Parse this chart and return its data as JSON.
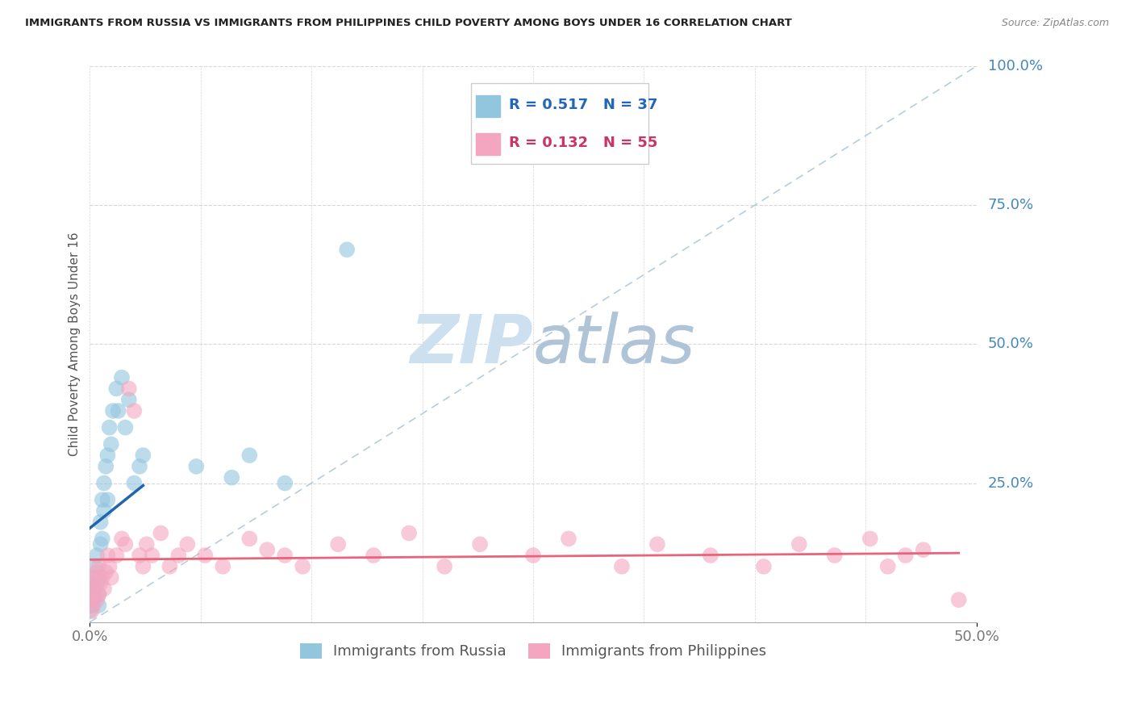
{
  "title": "IMMIGRANTS FROM RUSSIA VS IMMIGRANTS FROM PHILIPPINES CHILD POVERTY AMONG BOYS UNDER 16 CORRELATION CHART",
  "source": "Source: ZipAtlas.com",
  "yaxis_label": "Child Poverty Among Boys Under 16",
  "legend_russia": "Immigrants from Russia",
  "legend_philippines": "Immigrants from Philippines",
  "R_russia": 0.517,
  "N_russia": 37,
  "R_philippines": 0.132,
  "N_philippines": 55,
  "color_russia": "#92c5de",
  "color_philippines": "#f4a6c0",
  "color_russia_line": "#2166ac",
  "color_philippines_line": "#e8647a",
  "watermark_zip_color": "#c8dff0",
  "watermark_atlas_color": "#b8c8e0",
  "russia_x": [
    0.0,
    0.001,
    0.001,
    0.002,
    0.002,
    0.003,
    0.003,
    0.004,
    0.004,
    0.005,
    0.005,
    0.005,
    0.006,
    0.006,
    0.007,
    0.007,
    0.008,
    0.008,
    0.009,
    0.01,
    0.01,
    0.011,
    0.012,
    0.013,
    0.015,
    0.016,
    0.018,
    0.02,
    0.022,
    0.025,
    0.028,
    0.03,
    0.06,
    0.08,
    0.09,
    0.11,
    0.145
  ],
  "russia_y": [
    0.02,
    0.03,
    0.05,
    0.04,
    0.08,
    0.06,
    0.1,
    0.07,
    0.12,
    0.03,
    0.05,
    0.08,
    0.14,
    0.18,
    0.22,
    0.15,
    0.2,
    0.25,
    0.28,
    0.22,
    0.3,
    0.35,
    0.32,
    0.38,
    0.42,
    0.38,
    0.44,
    0.35,
    0.4,
    0.25,
    0.28,
    0.3,
    0.28,
    0.26,
    0.3,
    0.25,
    0.67
  ],
  "philippines_x": [
    0.0,
    0.001,
    0.001,
    0.002,
    0.002,
    0.003,
    0.003,
    0.004,
    0.004,
    0.005,
    0.005,
    0.006,
    0.007,
    0.008,
    0.009,
    0.01,
    0.011,
    0.012,
    0.015,
    0.018,
    0.02,
    0.022,
    0.025,
    0.028,
    0.03,
    0.032,
    0.035,
    0.04,
    0.045,
    0.05,
    0.055,
    0.065,
    0.075,
    0.09,
    0.1,
    0.11,
    0.12,
    0.14,
    0.16,
    0.18,
    0.2,
    0.22,
    0.25,
    0.27,
    0.3,
    0.32,
    0.35,
    0.38,
    0.4,
    0.42,
    0.44,
    0.45,
    0.46,
    0.47,
    0.49
  ],
  "philippines_y": [
    0.04,
    0.02,
    0.06,
    0.03,
    0.07,
    0.05,
    0.08,
    0.04,
    0.09,
    0.05,
    0.1,
    0.07,
    0.08,
    0.06,
    0.09,
    0.12,
    0.1,
    0.08,
    0.12,
    0.15,
    0.14,
    0.42,
    0.38,
    0.12,
    0.1,
    0.14,
    0.12,
    0.16,
    0.1,
    0.12,
    0.14,
    0.12,
    0.1,
    0.15,
    0.13,
    0.12,
    0.1,
    0.14,
    0.12,
    0.16,
    0.1,
    0.14,
    0.12,
    0.15,
    0.1,
    0.14,
    0.12,
    0.1,
    0.14,
    0.12,
    0.15,
    0.1,
    0.12,
    0.13,
    0.04
  ],
  "xlim": [
    0.0,
    0.5
  ],
  "ylim": [
    0.0,
    1.0
  ],
  "background_color": "#ffffff",
  "grid_color": "#d8d8d8",
  "axis_tick_color": "#777777",
  "right_label_color": "#4488bb"
}
